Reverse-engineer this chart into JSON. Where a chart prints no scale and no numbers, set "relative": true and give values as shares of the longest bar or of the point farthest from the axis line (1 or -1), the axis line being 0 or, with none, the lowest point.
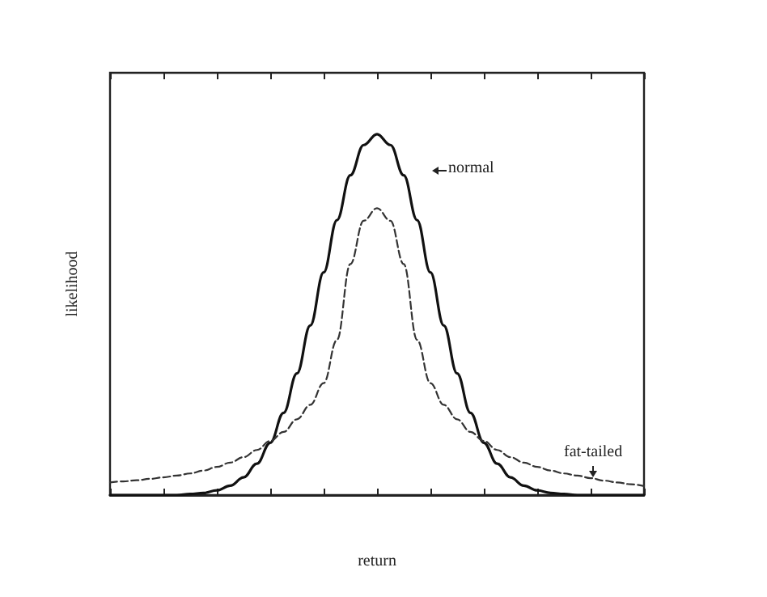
{
  "chart_data": {
    "type": "line",
    "relative": true,
    "xlabel": "return",
    "ylabel": "likelihood",
    "categories": [
      null,
      null,
      null,
      null,
      null,
      null,
      null,
      null,
      null,
      null,
      null,
      null,
      null,
      null,
      null,
      null,
      null,
      null,
      null,
      null,
      null,
      null,
      null,
      null,
      null,
      null,
      null,
      null,
      null,
      null,
      null,
      null,
      null,
      null,
      null,
      null,
      null,
      null,
      null,
      null,
      null
    ],
    "series": [
      {
        "color": "#111111",
        "line_style": "solid",
        "values": [
          0,
          0,
          0,
          0,
          0,
          0,
          0.003,
          0.006,
          0.013,
          0.026,
          0.049,
          0.087,
          0.145,
          0.228,
          0.337,
          0.47,
          0.617,
          0.762,
          0.886,
          0.97,
          1,
          0.97,
          0.886,
          0.762,
          0.617,
          0.47,
          0.337,
          0.228,
          0.145,
          0.087,
          0.049,
          0.026,
          0.013,
          0.006,
          0.003,
          0,
          0,
          0,
          0,
          0,
          0
        ]
      },
      {
        "color": "#333333",
        "line_style": "dashed",
        "values": [
          0.035,
          0.038,
          0.041,
          0.045,
          0.049,
          0.054,
          0.06,
          0.068,
          0.078,
          0.09,
          0.105,
          0.125,
          0.15,
          0.175,
          0.21,
          0.25,
          0.31,
          0.43,
          0.64,
          0.76,
          0.795,
          0.76,
          0.64,
          0.43,
          0.31,
          0.25,
          0.21,
          0.175,
          0.15,
          0.125,
          0.105,
          0.09,
          0.078,
          0.068,
          0.06,
          0.054,
          0.047,
          0.04,
          0.035,
          0.03,
          0.025
        ]
      }
    ],
    "annotations": [
      "normal",
      "fat-tailed"
    ],
    "marker": "none",
    "grid": false
  }
}
